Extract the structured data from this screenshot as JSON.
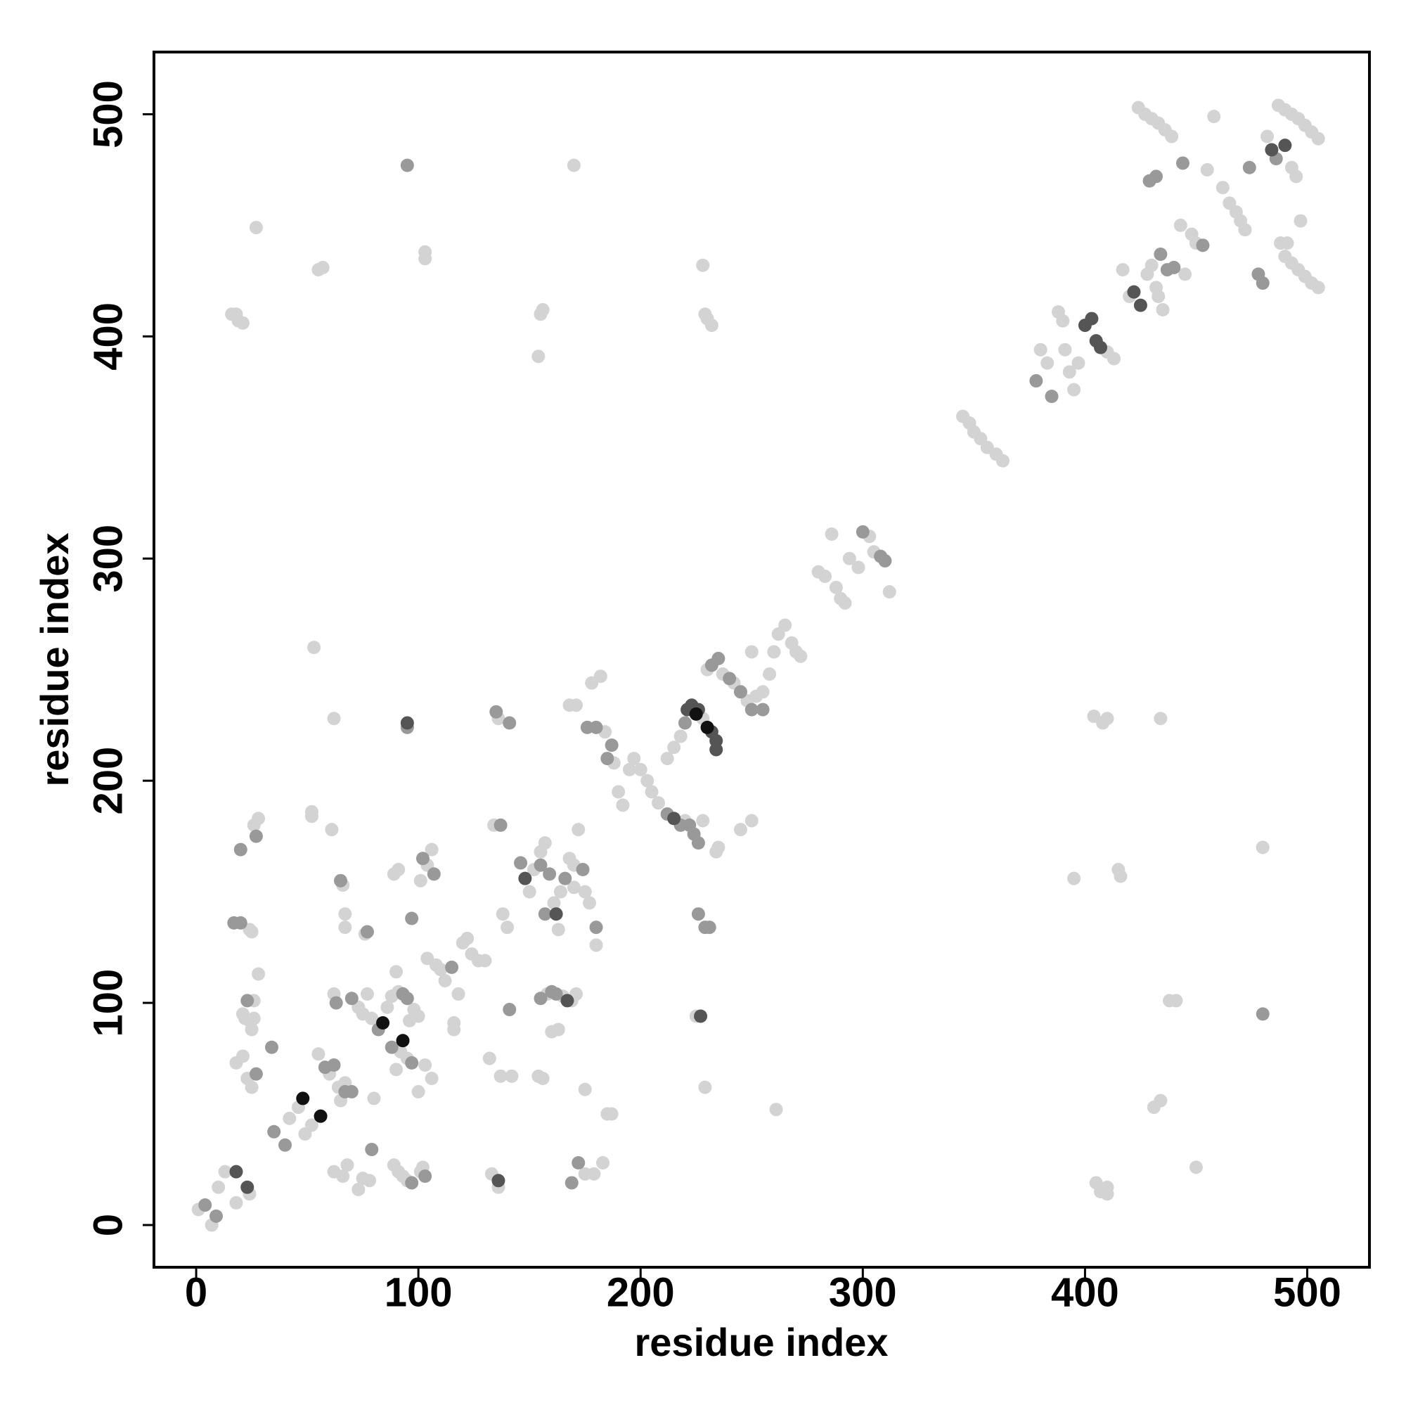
{
  "chart_data": {
    "type": "scatter",
    "x_label": "residue index",
    "y_label": "residue index",
    "xlim": [
      -19,
      528
    ],
    "ylim": [
      -19,
      528
    ],
    "xticks": [
      0,
      100,
      200,
      300,
      400,
      500
    ],
    "yticks": [
      0,
      100,
      200,
      300,
      400,
      500
    ],
    "grid": false,
    "series": [
      {
        "color": "#d3d3d3",
        "x": [
          1,
          7,
          10,
          13,
          18,
          24,
          16,
          19,
          21,
          18,
          27,
          24,
          25,
          26,
          28,
          21,
          24,
          25,
          22,
          26,
          28,
          26,
          18,
          21,
          23,
          25,
          42,
          46,
          52,
          49,
          55,
          60,
          64,
          65,
          67,
          52,
          52,
          53,
          55,
          57,
          62,
          61,
          62,
          66,
          67,
          67,
          73,
          75,
          77,
          79,
          86,
          88,
          90,
          91,
          96,
          98,
          100,
          95,
          100,
          103,
          106,
          92,
          90,
          76,
          80,
          62,
          66,
          68,
          73,
          75,
          78,
          89,
          91,
          93,
          95,
          101,
          102,
          89,
          91,
          103,
          103,
          101,
          104,
          106,
          104,
          108,
          110,
          112,
          116,
          116,
          118,
          120,
          122,
          124,
          127,
          130,
          132,
          133,
          136,
          134,
          136,
          138,
          140,
          137,
          142,
          150,
          152,
          155,
          157,
          161,
          163,
          164,
          168,
          170,
          172,
          175,
          177,
          170,
          155,
          156,
          154,
          158,
          165,
          169,
          171,
          160,
          163,
          154,
          156,
          175,
          179,
          183,
          185,
          187,
          175,
          180,
          170,
          168,
          171,
          178,
          182,
          184,
          188,
          190,
          192,
          195,
          197,
          200,
          203,
          205,
          208,
          220,
          228,
          234,
          235,
          212,
          215,
          218,
          228,
          230,
          237,
          242,
          248,
          252,
          255,
          258,
          260,
          262,
          265,
          268,
          270,
          272,
          250,
          245,
          250,
          225,
          229,
          228,
          229,
          230,
          232,
          261,
          280,
          283,
          286,
          288,
          290,
          292,
          294,
          298,
          303,
          305,
          312,
          345,
          348,
          350,
          353,
          356,
          360,
          363,
          380,
          383,
          388,
          390,
          391,
          393,
          395,
          397,
          410,
          413,
          404,
          408,
          410,
          395,
          415,
          416,
          405,
          407,
          410,
          410,
          417,
          420,
          428,
          430,
          432,
          433,
          435,
          445,
          431,
          434,
          438,
          441,
          434,
          443,
          448,
          450,
          450,
          455,
          458,
          462,
          465,
          468,
          470,
          472,
          482,
          493,
          495,
          488,
          491,
          497,
          480,
          424,
          427,
          430,
          433,
          436,
          439,
          487,
          490,
          493,
          496,
          499,
          502,
          505,
          490,
          493,
          496,
          499,
          502,
          505
        ],
        "y": [
          7,
          0,
          17,
          24,
          10,
          14,
          410,
          407,
          406,
          410,
          449,
          133,
          132,
          180,
          183,
          95,
          92,
          88,
          93,
          101,
          113,
          93,
          73,
          76,
          66,
          62,
          48,
          53,
          45,
          41,
          77,
          68,
          62,
          56,
          64,
          186,
          184,
          260,
          430,
          431,
          228,
          178,
          104,
          153,
          140,
          134,
          98,
          95,
          104,
          93,
          98,
          103,
          114,
          105,
          92,
          97,
          94,
          75,
          60,
          72,
          66,
          78,
          70,
          131,
          57,
          24,
          22,
          27,
          16,
          21,
          20,
          27,
          24,
          22,
          20,
          24,
          26,
          158,
          160,
          435,
          438,
          155,
          162,
          169,
          120,
          117,
          115,
          110,
          88,
          91,
          104,
          127,
          129,
          122,
          119,
          119,
          75,
          23,
          17,
          180,
          228,
          140,
          134,
          67,
          67,
          150,
          160,
          168,
          172,
          145,
          133,
          150,
          165,
          152,
          178,
          150,
          145,
          162,
          410,
          412,
          391,
          104,
          103,
          101,
          104,
          87,
          88,
          67,
          66,
          23,
          23,
          28,
          50,
          50,
          61,
          126,
          477,
          234,
          234,
          244,
          247,
          222,
          208,
          195,
          189,
          205,
          210,
          205,
          200,
          195,
          190,
          182,
          182,
          168,
          170,
          210,
          215,
          220,
          228,
          250,
          248,
          244,
          236,
          238,
          240,
          248,
          258,
          266,
          270,
          262,
          258,
          256,
          258,
          178,
          182,
          94,
          62,
          432,
          410,
          408,
          405,
          52,
          294,
          292,
          311,
          287,
          282,
          280,
          300,
          296,
          310,
          303,
          285,
          364,
          361,
          357,
          354,
          350,
          347,
          344,
          394,
          388,
          411,
          407,
          394,
          384,
          376,
          388,
          393,
          390,
          229,
          226,
          228,
          156,
          160,
          157,
          19,
          15,
          14,
          17,
          430,
          418,
          428,
          432,
          422,
          418,
          412,
          428,
          53,
          56,
          101,
          101,
          228,
          450,
          446,
          442,
          26,
          475,
          499,
          467,
          460,
          456,
          452,
          448,
          490,
          476,
          472,
          442,
          442,
          452,
          170,
          503,
          500,
          498,
          496,
          493,
          490,
          504,
          502,
          500,
          498,
          495,
          492,
          489,
          436,
          433,
          430,
          427,
          424,
          422
        ]
      },
      {
        "color": "#999999",
        "x": [
          4,
          9,
          17,
          20,
          27,
          20,
          23,
          27,
          34,
          35,
          40,
          58,
          62,
          67,
          70,
          63,
          65,
          70,
          82,
          93,
          95,
          97,
          88,
          77,
          79,
          97,
          103,
          95,
          95,
          97,
          102,
          107,
          115,
          137,
          135,
          141,
          141,
          146,
          155,
          159,
          157,
          166,
          174,
          155,
          160,
          162,
          169,
          172,
          180,
          176,
          180,
          187,
          185,
          212,
          218,
          222,
          224,
          226,
          220,
          232,
          235,
          240,
          245,
          250,
          255,
          226,
          229,
          231,
          300,
          308,
          310,
          378,
          385,
          434,
          437,
          440,
          429,
          432,
          444,
          453,
          474,
          478,
          480,
          486,
          480
        ],
        "y": [
          9,
          4,
          136,
          136,
          175,
          169,
          101,
          68,
          80,
          42,
          36,
          71,
          72,
          60,
          60,
          100,
          155,
          102,
          88,
          104,
          102,
          73,
          80,
          132,
          34,
          19,
          22,
          224,
          477,
          138,
          165,
          158,
          116,
          180,
          231,
          226,
          97,
          163,
          162,
          158,
          140,
          156,
          160,
          102,
          105,
          104,
          19,
          28,
          134,
          224,
          224,
          216,
          210,
          185,
          180,
          180,
          176,
          172,
          226,
          252,
          255,
          246,
          240,
          232,
          232,
          140,
          134,
          134,
          312,
          301,
          299,
          380,
          373,
          437,
          430,
          431,
          470,
          472,
          478,
          441,
          476,
          428,
          424,
          480,
          95
        ]
      },
      {
        "color": "#555555",
        "x": [
          23,
          18,
          95,
          136,
          148,
          162,
          167,
          215,
          221,
          223,
          226,
          232,
          234,
          234,
          227,
          400,
          403,
          405,
          407,
          422,
          425,
          484,
          490
        ],
        "y": [
          17,
          24,
          226,
          20,
          156,
          140,
          101,
          183,
          232,
          234,
          232,
          222,
          218,
          214,
          94,
          405,
          408,
          398,
          395,
          420,
          414,
          484,
          486
        ]
      },
      {
        "color": "#111111",
        "x": [
          48,
          56,
          84,
          93,
          225,
          230
        ],
        "y": [
          57,
          49,
          91,
          83,
          230,
          224
        ]
      }
    ]
  }
}
